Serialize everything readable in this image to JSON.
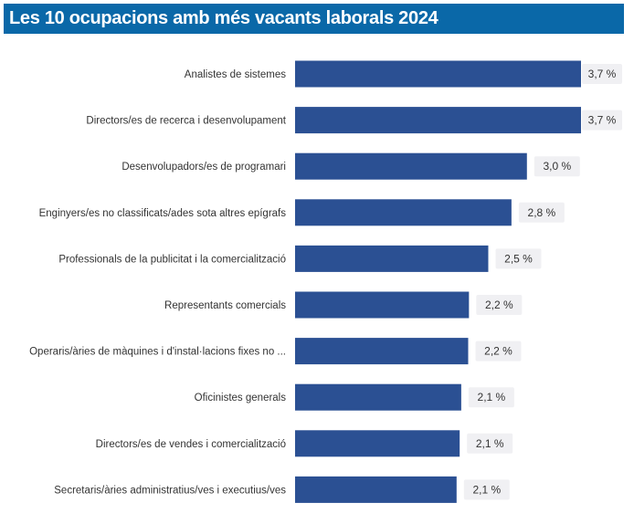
{
  "title": "Les 10 ocupacions amb més vacants laborals 2024",
  "chart_data": {
    "type": "bar",
    "orientation": "horizontal",
    "title": "Les 10 ocupacions amb més vacants laborals 2024",
    "xlabel": "",
    "ylabel": "",
    "xlim": [
      0,
      3.7
    ],
    "grid": false,
    "categories": [
      "Analistes de sistemes",
      "Directors/es de recerca i desenvolupament",
      "Desenvolupadors/es de programari",
      "Enginyers/es no classificats/ades sota altres epígrafs",
      "Professionals de la publicitat i la comercialització",
      "Representants comercials",
      "Operaris/àries de màquines i d'instal·lacions fixes no ...",
      "Oficinistes generals",
      "Directors/es de vendes i comercialització",
      "Secretaris/àries administratius/ves i executius/ves"
    ],
    "values": [
      3.7,
      3.7,
      3.0,
      2.8,
      2.5,
      2.25,
      2.24,
      2.15,
      2.13,
      2.09
    ],
    "data_labels": [
      "3,7 %",
      "3,7 %",
      "3,0 %",
      "2,8 %",
      "2,5 %",
      "2,2 %",
      "2,2 %",
      "2,1 %",
      "2,1 %",
      "2,1 %"
    ],
    "colors": {
      "bar": "#2b5093",
      "label_bg": "#f0f0f3",
      "title_bg": "#0a68a8"
    }
  }
}
